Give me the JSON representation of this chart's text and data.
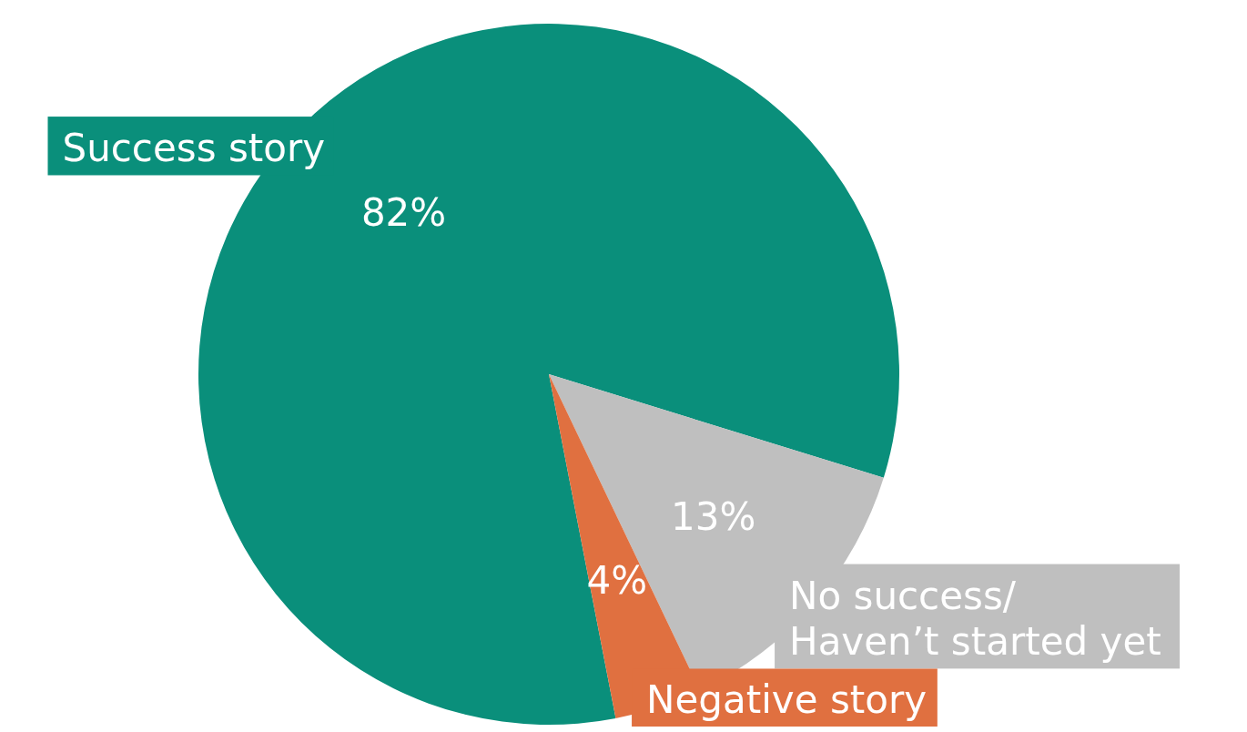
{
  "chart_data": {
    "type": "pie",
    "categories": [
      "Success story",
      "No success/\nHaven’t started yet",
      "Negative story"
    ],
    "values": [
      82,
      13,
      4
    ],
    "colors": [
      "#0a8f7b",
      "#bfbfbf",
      "#e07040"
    ],
    "value_labels": [
      "82%",
      "13%",
      "4%"
    ]
  }
}
